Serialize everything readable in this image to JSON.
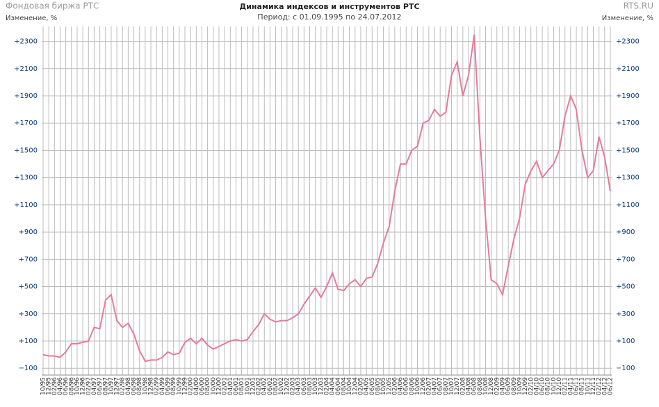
{
  "chart_data": {
    "type": "line",
    "title": "Динамика индексов и инструментов РТС",
    "subtitle": "Период: с 01.09.1995 по 24.07.2012",
    "source_left": "Фондовая биржа РТС",
    "source_right": "RTS.RU",
    "y_label": "Изменение, %",
    "y2_label": "Изменение, %",
    "categories": [
      "10/95",
      "12/95",
      "02/96",
      "04/96",
      "06/96",
      "08/96",
      "10/96",
      "12/96",
      "02/97",
      "04/97",
      "06/97",
      "08/97",
      "10/97",
      "12/97",
      "02/98",
      "04/98",
      "06/98",
      "08/98",
      "10/98",
      "12/98",
      "02/99",
      "04/99",
      "06/99",
      "08/99",
      "10/99",
      "12/99",
      "02/00",
      "04/00",
      "06/00",
      "08/00",
      "10/00",
      "12/00",
      "02/01",
      "04/01",
      "06/01",
      "08/01",
      "10/01",
      "12/01",
      "02/02",
      "04/02",
      "06/02",
      "08/02",
      "10/02",
      "12/02",
      "02/03",
      "04/03",
      "06/03",
      "08/03",
      "10/03",
      "12/03",
      "02/04",
      "04/04",
      "06/04",
      "08/04",
      "10/04",
      "12/04",
      "02/05",
      "04/05",
      "06/05",
      "08/05",
      "10/05",
      "12/05",
      "02/06",
      "04/06",
      "06/06",
      "08/06",
      "10/06",
      "12/06",
      "02/07",
      "04/07",
      "06/07",
      "08/07",
      "10/07",
      "12/07",
      "02/08",
      "04/08",
      "06/08",
      "08/08",
      "10/08",
      "12/08",
      "02/09",
      "04/09",
      "06/09",
      "08/09",
      "10/09",
      "12/09",
      "02/10",
      "04/10",
      "06/10",
      "08/10",
      "10/10",
      "12/10",
      "02/11",
      "04/11",
      "06/11",
      "08/11",
      "10/11",
      "12/11",
      "02/12",
      "04/12",
      "06/12"
    ],
    "series": [
      {
        "name": "РТС",
        "color": "#e8799a",
        "values": [
          0,
          -10,
          -10,
          -20,
          20,
          80,
          80,
          90,
          100,
          200,
          190,
          400,
          440,
          250,
          200,
          230,
          150,
          30,
          -50,
          -40,
          -40,
          -20,
          20,
          0,
          10,
          90,
          120,
          80,
          120,
          70,
          40,
          60,
          80,
          100,
          110,
          100,
          110,
          170,
          220,
          300,
          260,
          240,
          250,
          250,
          270,
          300,
          370,
          430,
          490,
          420,
          500,
          600,
          480,
          470,
          520,
          550,
          500,
          560,
          570,
          670,
          820,
          940,
          1200,
          1400,
          1400,
          1500,
          1530,
          1700,
          1720,
          1800,
          1750,
          1780,
          2050,
          2150,
          1900,
          2050,
          2350,
          1600,
          1000,
          550,
          520,
          440,
          650,
          850,
          1000,
          1250,
          1350,
          1420,
          1300,
          1350,
          1400,
          1500,
          1750,
          1900,
          1800,
          1500,
          1300,
          1350,
          1600,
          1450,
          1200
        ]
      }
    ],
    "ylim": [
      -150,
      2410
    ],
    "yticks": [
      {
        "value": -100,
        "label": "−100"
      },
      {
        "value": 100,
        "label": "+100"
      },
      {
        "value": 300,
        "label": "+300"
      },
      {
        "value": 500,
        "label": "+500"
      },
      {
        "value": 700,
        "label": "+700"
      },
      {
        "value": 900,
        "label": "+900"
      },
      {
        "value": 1100,
        "label": "+1100"
      },
      {
        "value": 1300,
        "label": "+1300"
      },
      {
        "value": 1500,
        "label": "+1500"
      },
      {
        "value": 1700,
        "label": "+1700"
      },
      {
        "value": 1900,
        "label": "+1900"
      },
      {
        "value": 2100,
        "label": "+2100"
      },
      {
        "value": 2300,
        "label": "+2300"
      }
    ],
    "grid": true
  }
}
